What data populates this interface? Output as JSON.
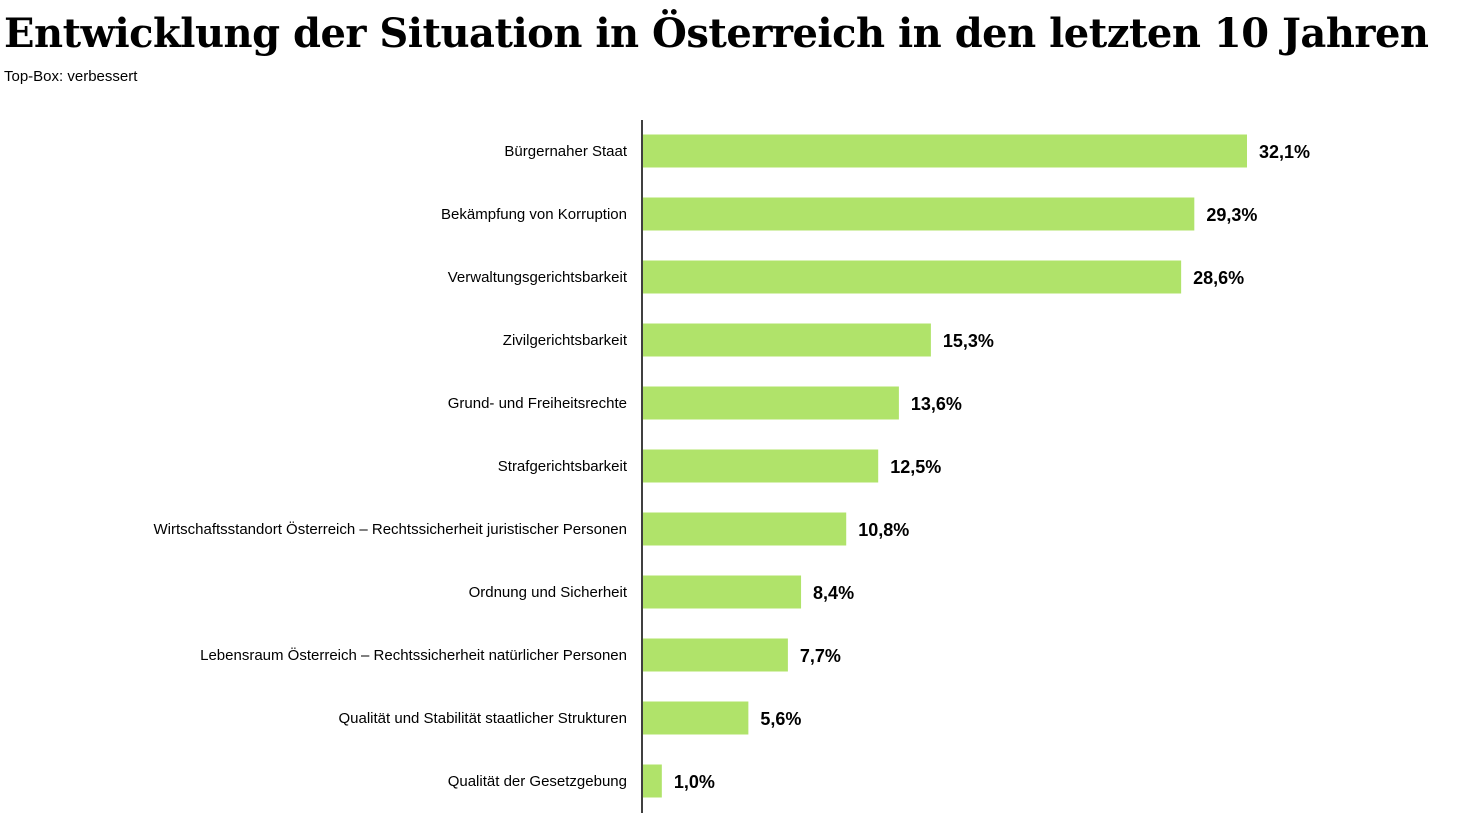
{
  "chart_data": {
    "type": "bar",
    "orientation": "horizontal",
    "title": "Entwicklung der Situation in Österreich in den letzten 10 Jahren",
    "subtitle": "Top-Box: verbessert",
    "categories": [
      "Bürgernaher Staat",
      "Bekämpfung von Korruption",
      "Verwaltungsgerichtsbarkeit",
      "Zivilgerichtsbarkeit",
      "Grund- und Freiheitsrechte",
      "Strafgerichtsbarkeit",
      "Wirtschaftsstandort Österreich – Rechtssicherheit juristischer Personen",
      "Ordnung und Sicherheit",
      "Lebensraum Österreich – Rechtssicherheit natürlicher Personen",
      "Qualität und Stabilität staatlicher Strukturen",
      "Qualität der Gesetzgebung"
    ],
    "values": [
      32.1,
      29.3,
      28.6,
      15.3,
      13.6,
      12.5,
      10.8,
      8.4,
      7.7,
      5.6,
      1.0
    ],
    "value_labels": [
      "32,1%",
      "29,3%",
      "28,6%",
      "15,3%",
      "13,6%",
      "12,5%",
      "10,8%",
      "8,4%",
      "7,7%",
      "5,6%",
      "1,0%"
    ],
    "unit": "%",
    "xlim": [
      0,
      33
    ],
    "grid": false,
    "legend": "none",
    "xlabel": "",
    "ylabel": "",
    "bar_color": "#b0e36a",
    "axis_color": "#000000"
  }
}
